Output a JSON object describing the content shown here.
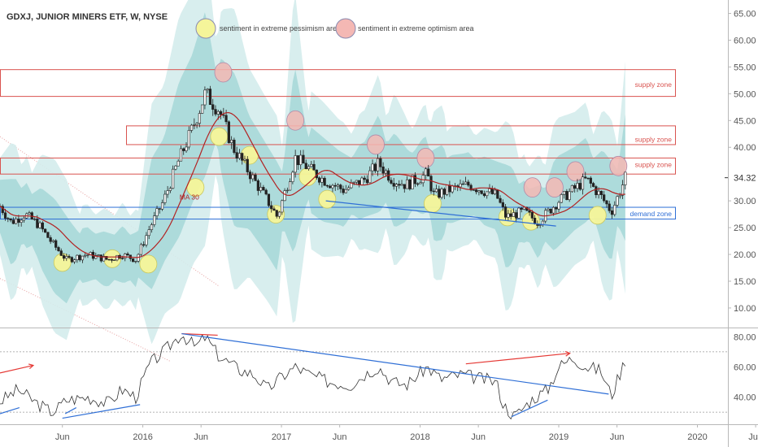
{
  "chart_data": {
    "type": "candlestick",
    "title": "GDXJ, JUNIOR MINERS ETF, W, NYSE",
    "price_axis": {
      "ylim": [
        6.5,
        67.5
      ],
      "ticks": [
        "10.00",
        "15.00",
        "20.00",
        "25.00",
        "30.00",
        "34.32",
        "40.00",
        "45.00",
        "50.00",
        "55.00",
        "60.00",
        "65.00"
      ],
      "last_price": "34.32"
    },
    "rsi_axis": {
      "ylim": [
        22,
        85
      ],
      "ticks": [
        "40.00",
        "60.00",
        "80.00"
      ],
      "upper_band": 70,
      "lower_band": 30
    },
    "x_ticks": [
      "Jun",
      "2016",
      "Jun",
      "2017",
      "Jun",
      "2018",
      "Jun",
      "2019",
      "Jun",
      "2020",
      "Jun"
    ],
    "x_tick_t": [
      2015.42,
      2016.0,
      2016.42,
      2017.0,
      2017.42,
      2018.0,
      2018.42,
      2019.0,
      2019.42,
      2020.0,
      2020.42
    ],
    "x_range": [
      2014.97,
      2020.22
    ],
    "price_keyframes": [
      [
        2014.97,
        29
      ],
      [
        2015.05,
        26
      ],
      [
        2015.15,
        27.5
      ],
      [
        2015.25,
        25.5
      ],
      [
        2015.35,
        22
      ],
      [
        2015.45,
        19
      ],
      [
        2015.6,
        20
      ],
      [
        2015.75,
        19
      ],
      [
        2015.85,
        20
      ],
      [
        2015.95,
        19
      ],
      [
        2016.05,
        25
      ],
      [
        2016.15,
        30
      ],
      [
        2016.25,
        37
      ],
      [
        2016.35,
        43
      ],
      [
        2016.45,
        50
      ],
      [
        2016.55,
        47
      ],
      [
        2016.65,
        40
      ],
      [
        2016.75,
        36
      ],
      [
        2016.9,
        30
      ],
      [
        2016.97,
        27
      ],
      [
        2017.1,
        38
      ],
      [
        2017.2,
        36
      ],
      [
        2017.3,
        34
      ],
      [
        2017.45,
        32
      ],
      [
        2017.6,
        34
      ],
      [
        2017.7,
        37
      ],
      [
        2017.8,
        34
      ],
      [
        2017.9,
        33
      ],
      [
        2018.05,
        35
      ],
      [
        2018.1,
        31
      ],
      [
        2018.2,
        32
      ],
      [
        2018.35,
        33
      ],
      [
        2018.45,
        32
      ],
      [
        2018.55,
        31
      ],
      [
        2018.62,
        27
      ],
      [
        2018.75,
        28
      ],
      [
        2018.85,
        26
      ],
      [
        2019.0,
        30
      ],
      [
        2019.1,
        32
      ],
      [
        2019.2,
        34
      ],
      [
        2019.3,
        31
      ],
      [
        2019.38,
        28
      ],
      [
        2019.43,
        31
      ],
      [
        2019.48,
        34.32
      ]
    ],
    "rsi_keyframes": [
      [
        2014.97,
        37
      ],
      [
        2015.1,
        45
      ],
      [
        2015.25,
        35
      ],
      [
        2015.35,
        30
      ],
      [
        2015.45,
        38
      ],
      [
        2015.6,
        40
      ],
      [
        2015.75,
        36
      ],
      [
        2015.85,
        45
      ],
      [
        2015.95,
        40
      ],
      [
        2016.05,
        62
      ],
      [
        2016.15,
        70
      ],
      [
        2016.28,
        82
      ],
      [
        2016.38,
        73
      ],
      [
        2016.45,
        80
      ],
      [
        2016.55,
        67
      ],
      [
        2016.7,
        58
      ],
      [
        2016.8,
        55
      ],
      [
        2016.9,
        45
      ],
      [
        2016.98,
        52
      ],
      [
        2017.1,
        60
      ],
      [
        2017.2,
        55
      ],
      [
        2017.35,
        50
      ],
      [
        2017.5,
        48
      ],
      [
        2017.6,
        55
      ],
      [
        2017.7,
        60
      ],
      [
        2017.8,
        50
      ],
      [
        2017.9,
        48
      ],
      [
        2018.05,
        60
      ],
      [
        2018.15,
        52
      ],
      [
        2018.3,
        55
      ],
      [
        2018.45,
        52
      ],
      [
        2018.55,
        50
      ],
      [
        2018.6,
        35
      ],
      [
        2018.68,
        27
      ],
      [
        2018.8,
        38
      ],
      [
        2018.92,
        45
      ],
      [
        2019.0,
        60
      ],
      [
        2019.1,
        66
      ],
      [
        2019.2,
        60
      ],
      [
        2019.3,
        58
      ],
      [
        2019.38,
        41
      ],
      [
        2019.48,
        65
      ]
    ],
    "ma_label": "MA 30",
    "legend": [
      {
        "label": "sentiment in extreme pessimism area",
        "color": "#f5f59a"
      },
      {
        "label": "sentiment in extreme optimism area",
        "color": "#f4b8b4"
      }
    ],
    "zones": [
      {
        "label": "supply zone",
        "color": "#d9534f",
        "y1": 49.5,
        "y2": 54.5,
        "label_y": 51.7
      },
      {
        "label": "supply zone",
        "color": "#d9534f",
        "y1": 40.5,
        "y2": 44.0,
        "label_y": 41.5
      },
      {
        "label": "supply zone",
        "color": "#d9534f",
        "y1": 35.0,
        "y2": 38.0,
        "label_y": 36.8
      },
      {
        "label": "demand zone",
        "color": "#2f6fd6",
        "y1": 26.6,
        "y2": 28.8,
        "label_y": 27.6
      }
    ],
    "pessimism_markers": [
      [
        2015.42,
        18.5
      ],
      [
        2015.78,
        19.2
      ],
      [
        2016.04,
        18.2
      ],
      [
        2016.38,
        32.5
      ],
      [
        2016.55,
        42
      ],
      [
        2016.77,
        38.5
      ],
      [
        2016.96,
        27.5
      ],
      [
        2017.19,
        34.5
      ],
      [
        2017.33,
        30.3
      ],
      [
        2018.09,
        29.5
      ],
      [
        2018.63,
        27
      ],
      [
        2018.8,
        26.2
      ],
      [
        2019.28,
        27.3
      ]
    ],
    "optimism_markers": [
      [
        2016.58,
        54
      ],
      [
        2017.1,
        45
      ],
      [
        2017.68,
        40.5
      ],
      [
        2018.04,
        38
      ],
      [
        2018.81,
        32.5
      ],
      [
        2018.97,
        32.5
      ],
      [
        2019.12,
        35.5
      ],
      [
        2019.43,
        36.5
      ]
    ]
  }
}
